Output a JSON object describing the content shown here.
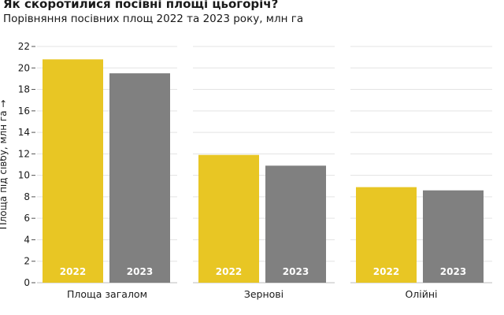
{
  "chart_data": {
    "type": "bar",
    "title": "Як скоротилися посівні площі цьогоріч?",
    "subtitle": "Порівняння посівних площ 2022 та 2023 року, млн га",
    "ylabel": "Площа під сівбу, млн га →",
    "xlabel": "",
    "ylim": [
      0,
      22
    ],
    "yticks": [
      0,
      2,
      4,
      6,
      8,
      10,
      12,
      14,
      16,
      18,
      20,
      22
    ],
    "categories": [
      "Площа загалом",
      "Зернові",
      "Олійні"
    ],
    "series": [
      {
        "name": "2022",
        "color": "#E8C624",
        "values": [
          20.8,
          11.9,
          8.9
        ]
      },
      {
        "name": "2023",
        "color": "#808080",
        "values": [
          19.5,
          10.9,
          8.6
        ]
      }
    ],
    "grid": true,
    "legend": "none (year labels inside bars)"
  }
}
